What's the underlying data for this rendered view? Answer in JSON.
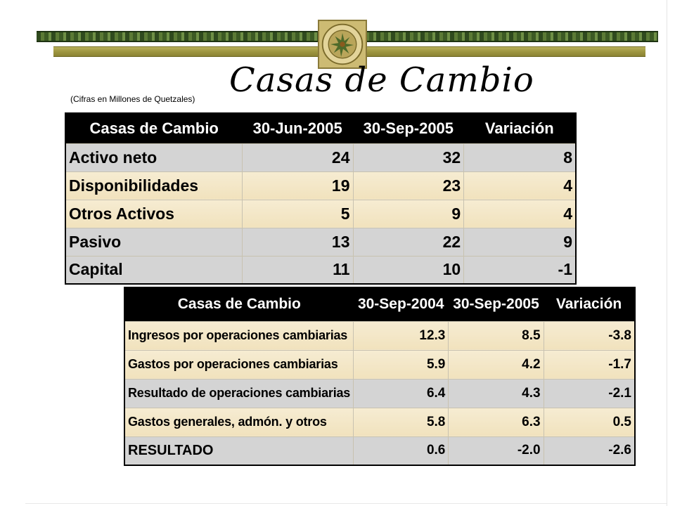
{
  "title": "Casas de Cambio",
  "subtitle": "(Cifras en Millones de Quetzales)",
  "colors": {
    "header_bg": "#000000",
    "row_gray": "#d4d4d4",
    "row_cream": "#f3e6c5",
    "bar_green": "#3c5a24",
    "bar_olive": "#9e9640"
  },
  "table1": {
    "headers": [
      "Casas de Cambio",
      "30-Jun-2005",
      "30-Sep-2005",
      "Variación"
    ],
    "rows": [
      [
        "Activo neto",
        "24",
        "32",
        "8"
      ],
      [
        "Disponibilidades",
        "19",
        "23",
        "4"
      ],
      [
        "Otros Activos",
        "5",
        "9",
        "4"
      ],
      [
        "Pasivo",
        "13",
        "22",
        "9"
      ],
      [
        "Capital",
        "11",
        "10",
        "-1"
      ]
    ]
  },
  "table2": {
    "headers": [
      "Casas de Cambio",
      "30-Sep-2004",
      "30-Sep-2005",
      "Variación"
    ],
    "rows": [
      [
        "Ingresos por operaciones cambiarias",
        "12.3",
        "8.5",
        "-3.8"
      ],
      [
        "Gastos por operaciones cambiarias",
        "5.9",
        "4.2",
        "-1.7"
      ],
      [
        "Resultado de operaciones cambiarias",
        "6.4",
        "4.3",
        "-2.1"
      ],
      [
        "Gastos generales, admón. y otros",
        "5.8",
        "6.3",
        "0.5"
      ],
      [
        "RESULTADO",
        "0.6",
        "-2.0",
        "-2.6"
      ]
    ]
  }
}
